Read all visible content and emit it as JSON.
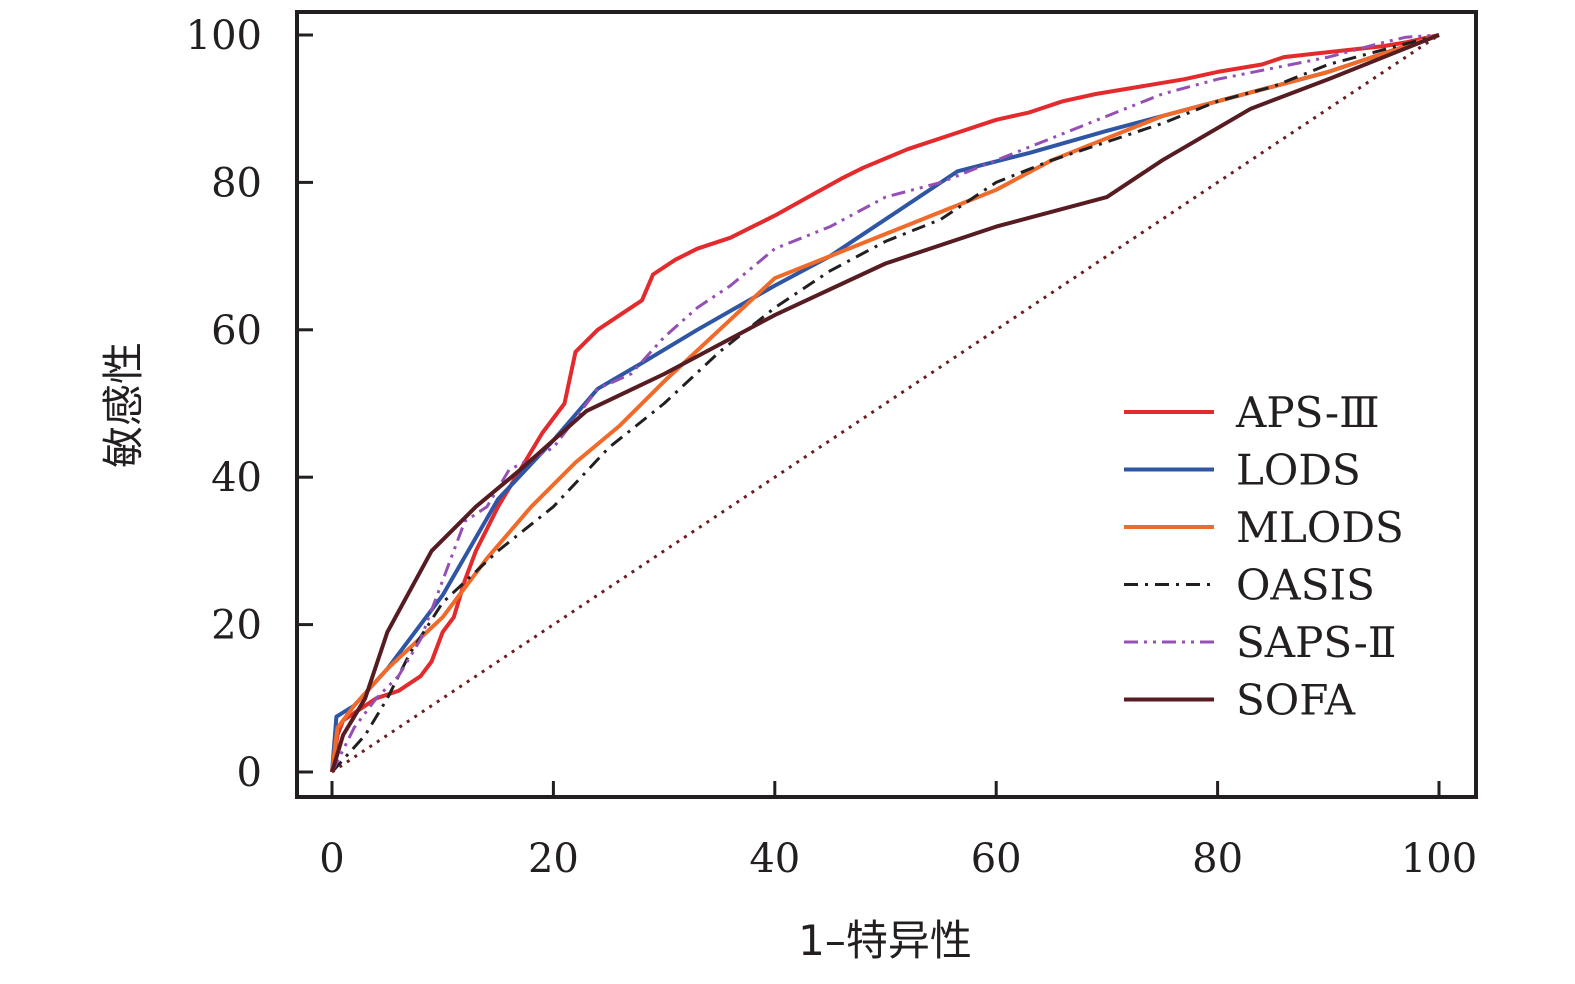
{
  "chart_data": {
    "type": "line",
    "title": "",
    "xlabel": "1–特异性",
    "ylabel": "敏感性",
    "xlim": [
      0,
      100
    ],
    "ylim": [
      0,
      100
    ],
    "xticks": [
      "0",
      "20",
      "40",
      "60",
      "80",
      "100"
    ],
    "yticks": [
      "0",
      "20",
      "40",
      "60",
      "80",
      "100"
    ],
    "grid": false,
    "legend_position": "bottom-right",
    "series": [
      {
        "name": "APS-Ⅲ",
        "color": "#e32a2c",
        "dash": "solid",
        "x": [
          0,
          0.5,
          1,
          3,
          4,
          5,
          6,
          7,
          8,
          9,
          10,
          11,
          12,
          13,
          14,
          15,
          17,
          19,
          21,
          22,
          24,
          26,
          28,
          29,
          31,
          33,
          36,
          38,
          40,
          43,
          46,
          48,
          52,
          56,
          60,
          63,
          66,
          69,
          73,
          77,
          80,
          84,
          86,
          89,
          92,
          95,
          97,
          100
        ],
        "y": [
          0,
          5,
          7,
          9,
          10,
          10.5,
          11,
          12,
          13,
          15,
          19,
          21,
          26,
          30,
          33,
          36,
          41,
          46,
          50,
          57,
          60,
          62,
          64,
          67.5,
          69.5,
          71,
          72.5,
          74,
          75.5,
          78,
          80.5,
          82,
          84.5,
          86.5,
          88.5,
          89.5,
          91,
          92,
          93,
          94,
          95,
          96,
          97,
          97.5,
          98,
          98.5,
          99,
          100
        ]
      },
      {
        "name": "LODS",
        "color": "#2f56a5",
        "dash": "solid",
        "x": [
          0,
          0.4,
          2,
          5,
          10,
          15,
          20,
          24,
          28,
          33,
          40,
          45,
          50,
          56.5,
          63,
          70,
          80,
          90,
          100
        ],
        "y": [
          0,
          7.5,
          9,
          14,
          24,
          37,
          45,
          52,
          55.5,
          60,
          66,
          70,
          75,
          81.5,
          84,
          87,
          91,
          95,
          100
        ]
      },
      {
        "name": "MLODS",
        "color": "#f06a2a",
        "dash": "solid",
        "x": [
          0,
          0.5,
          2,
          5,
          10,
          14,
          18,
          22,
          26,
          30,
          35,
          40,
          45,
          50,
          55,
          60,
          65,
          70,
          75,
          80,
          90,
          100
        ],
        "y": [
          0,
          6,
          9,
          14,
          21,
          29,
          36,
          42,
          47,
          53,
          60,
          67,
          70,
          73,
          76,
          79,
          83,
          86,
          89,
          91,
          95,
          100
        ]
      },
      {
        "name": "OASIS",
        "color": "#231f20",
        "dash": "dashdot",
        "x": [
          0,
          1.5,
          3,
          5,
          7,
          10,
          15,
          20,
          25,
          30,
          35,
          40,
          45,
          50,
          55,
          60,
          65,
          70,
          75,
          80,
          85,
          90,
          95,
          100
        ],
        "y": [
          0,
          2.5,
          5,
          10,
          16,
          23,
          30,
          36,
          44,
          50,
          57,
          63,
          68,
          72,
          75,
          80,
          83,
          85.5,
          88,
          91,
          93,
          96,
          98,
          100
        ]
      },
      {
        "name": "SAPS-Ⅱ",
        "color": "#9450b4",
        "dash": "dashdotdot",
        "x": [
          0,
          1,
          2,
          4,
          6,
          8,
          10,
          12,
          14,
          16,
          20,
          24,
          27,
          30,
          33,
          36,
          40,
          45,
          50,
          55,
          60,
          65,
          70,
          75,
          80,
          85,
          90,
          95,
          97,
          100
        ],
        "y": [
          0,
          3,
          6,
          10,
          13,
          18,
          26,
          34,
          36,
          41,
          44,
          52,
          54,
          59,
          63,
          66,
          71,
          74,
          78,
          80,
          83,
          86,
          89,
          92,
          94,
          95.5,
          97,
          99,
          99.7,
          100
        ]
      },
      {
        "name": "SOFA",
        "color": "#561c22",
        "dash": "solid",
        "x": [
          0,
          1,
          3,
          5,
          9,
          13,
          17,
          20,
          23,
          30,
          40,
          50,
          60,
          70,
          75,
          83,
          90,
          100
        ],
        "y": [
          0,
          5,
          10,
          19,
          30,
          36,
          41,
          45,
          49,
          54,
          62,
          69,
          74,
          78,
          83,
          90,
          94,
          100
        ]
      },
      {
        "name": "",
        "color": "#6b1e22",
        "dash": "dotted",
        "x": [
          0,
          100
        ],
        "y": [
          0,
          100
        ]
      }
    ]
  }
}
